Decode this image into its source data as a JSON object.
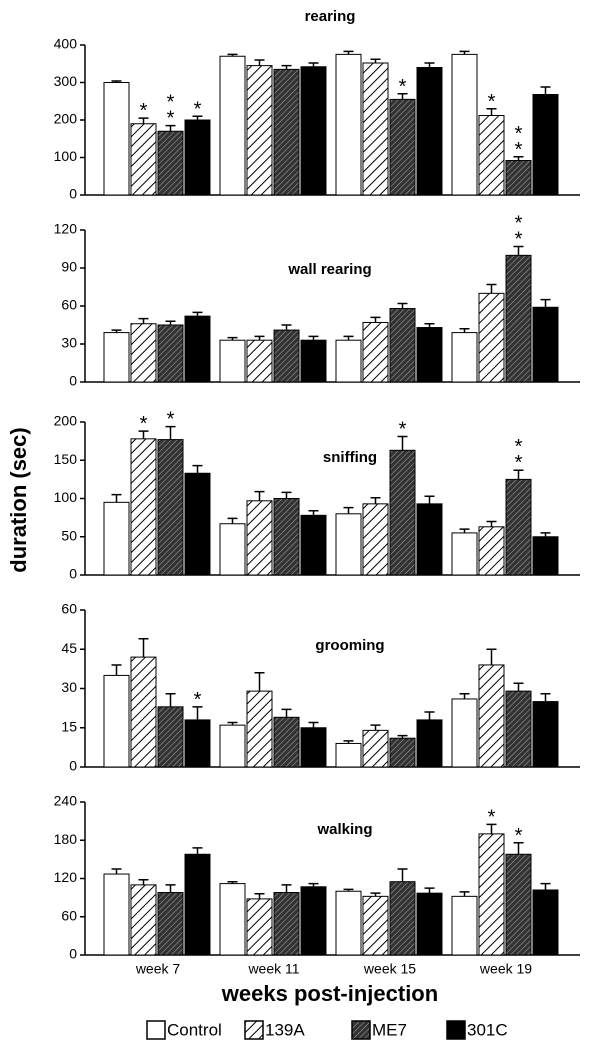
{
  "categories": [
    "week 7",
    "week 11",
    "week 15",
    "week 19"
  ],
  "xlabel": "weeks post-injection",
  "ylabel": "duration (sec)",
  "series": [
    {
      "name": "Control",
      "color": "#ffffff",
      "pattern": "none"
    },
    {
      "name": "139A",
      "color": "#ffffff",
      "pattern": "hatch"
    },
    {
      "name": "ME7",
      "color": "#333333",
      "pattern": "dense-hatch"
    },
    {
      "name": "301C",
      "color": "#000000",
      "pattern": "none"
    }
  ],
  "chart_data": [
    {
      "type": "bar",
      "title": "rearing",
      "ylim": [
        0,
        400
      ],
      "yticks": [
        0,
        100,
        200,
        300,
        400
      ],
      "series": [
        {
          "values": [
            300,
            370,
            375,
            375
          ],
          "errors": [
            4,
            5,
            8,
            8
          ],
          "significance": [
            null,
            null,
            null,
            null
          ]
        },
        {
          "values": [
            190,
            345,
            352,
            212
          ],
          "errors": [
            15,
            15,
            10,
            18
          ],
          "significance": [
            "*",
            null,
            null,
            "*"
          ]
        },
        {
          "values": [
            170,
            335,
            255,
            92
          ],
          "errors": [
            15,
            10,
            15,
            10
          ],
          "significance": [
            "**",
            null,
            "*",
            "**"
          ]
        },
        {
          "values": [
            200,
            342,
            340,
            268
          ],
          "errors": [
            10,
            10,
            12,
            20
          ],
          "significance": [
            "*",
            null,
            null,
            null
          ]
        }
      ]
    },
    {
      "type": "bar",
      "title": "wall rearing",
      "ylim": [
        0,
        120
      ],
      "yticks": [
        0,
        30,
        60,
        90,
        120
      ],
      "series": [
        {
          "values": [
            39,
            33,
            33,
            39
          ],
          "errors": [
            2,
            2,
            3,
            3
          ],
          "significance": [
            null,
            null,
            null,
            null
          ]
        },
        {
          "values": [
            46,
            33,
            47,
            70
          ],
          "errors": [
            4,
            3,
            4,
            7
          ],
          "significance": [
            null,
            null,
            null,
            null
          ]
        },
        {
          "values": [
            45,
            41,
            58,
            100
          ],
          "errors": [
            3,
            4,
            4,
            7
          ],
          "significance": [
            null,
            null,
            null,
            "**"
          ]
        },
        {
          "values": [
            52,
            33,
            43,
            59
          ],
          "errors": [
            3,
            3,
            3,
            6
          ],
          "significance": [
            null,
            null,
            null,
            null
          ]
        }
      ]
    },
    {
      "type": "bar",
      "title": "sniffing",
      "ylim": [
        0,
        200
      ],
      "yticks": [
        0,
        50,
        100,
        150,
        200
      ],
      "series": [
        {
          "values": [
            95,
            67,
            80,
            55
          ],
          "errors": [
            10,
            7,
            8,
            5
          ],
          "significance": [
            null,
            null,
            null,
            null
          ]
        },
        {
          "values": [
            178,
            97,
            93,
            63
          ],
          "errors": [
            10,
            12,
            8,
            7
          ],
          "significance": [
            "*",
            null,
            null,
            null
          ]
        },
        {
          "values": [
            177,
            100,
            163,
            125
          ],
          "errors": [
            17,
            8,
            18,
            12
          ],
          "significance": [
            "*",
            null,
            "*",
            "**"
          ]
        },
        {
          "values": [
            133,
            78,
            93,
            50
          ],
          "errors": [
            10,
            6,
            10,
            5
          ],
          "significance": [
            null,
            null,
            null,
            null
          ]
        }
      ]
    },
    {
      "type": "bar",
      "title": "grooming",
      "ylim": [
        0,
        60
      ],
      "yticks": [
        0,
        15,
        30,
        45,
        60
      ],
      "series": [
        {
          "values": [
            35,
            16,
            9,
            26
          ],
          "errors": [
            4,
            1,
            1,
            2
          ],
          "significance": [
            null,
            null,
            null,
            null
          ]
        },
        {
          "values": [
            42,
            29,
            14,
            39
          ],
          "errors": [
            7,
            7,
            2,
            6
          ],
          "significance": [
            null,
            null,
            null,
            null
          ]
        },
        {
          "values": [
            23,
            19,
            11,
            29
          ],
          "errors": [
            5,
            3,
            1,
            3
          ],
          "significance": [
            null,
            null,
            null,
            null
          ]
        },
        {
          "values": [
            18,
            15,
            18,
            25
          ],
          "errors": [
            5,
            2,
            3,
            3
          ],
          "significance": [
            "*",
            null,
            null,
            null
          ]
        }
      ]
    },
    {
      "type": "bar",
      "title": "walking",
      "ylim": [
        0,
        240
      ],
      "yticks": [
        0,
        60,
        120,
        180,
        240
      ],
      "series": [
        {
          "values": [
            127,
            112,
            100,
            92
          ],
          "errors": [
            8,
            3,
            3,
            7
          ],
          "significance": [
            null,
            null,
            null,
            null
          ]
        },
        {
          "values": [
            110,
            88,
            92,
            190
          ],
          "errors": [
            8,
            8,
            5,
            15
          ],
          "significance": [
            null,
            null,
            null,
            "*"
          ]
        },
        {
          "values": [
            98,
            98,
            115,
            158
          ],
          "errors": [
            12,
            12,
            20,
            18
          ],
          "significance": [
            null,
            null,
            null,
            "*"
          ]
        },
        {
          "values": [
            158,
            107,
            97,
            102
          ],
          "errors": [
            10,
            5,
            8,
            10
          ],
          "significance": [
            null,
            null,
            null,
            null
          ]
        }
      ]
    }
  ]
}
